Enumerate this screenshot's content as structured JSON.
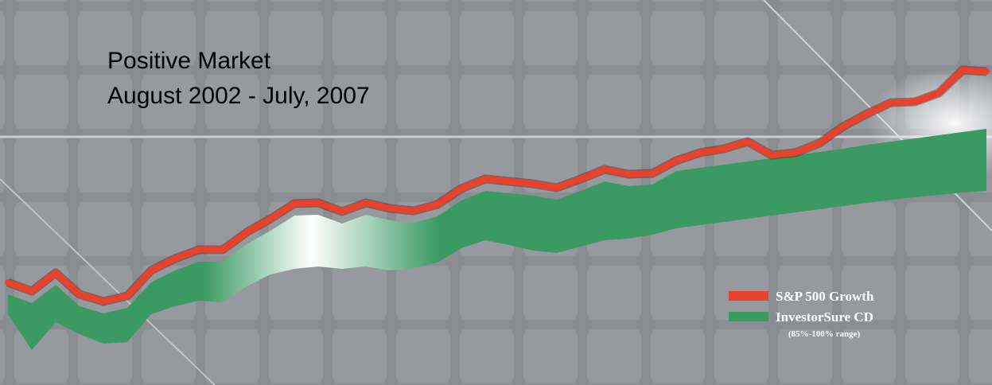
{
  "chart_data": {
    "type": "line",
    "title": "Positive Market",
    "subtitle": "August 2002 - July, 2007",
    "legend_note": "(85%-100% range)",
    "series": [
      {
        "name": "S&P 500 Growth",
        "color": "#e8412c",
        "values": [
          129,
          118,
          141,
          114,
          105,
          112,
          144,
          159,
          170,
          170,
          192,
          209,
          228,
          229,
          218,
          229,
          222,
          219,
          227,
          247,
          259,
          256,
          253,
          248,
          259,
          271,
          265,
          266,
          282,
          292,
          297,
          306,
          289,
          292,
          304,
          325,
          341,
          355,
          356,
          367,
          396,
          394
        ]
      },
      {
        "name": "InvestorSure CD",
        "color": "#3a9a62",
        "values": [
          114,
          103,
          126,
          99,
          90,
          97,
          129,
          144,
          155,
          155,
          177,
          194,
          213,
          214,
          203,
          214,
          207,
          204,
          212,
          232,
          244,
          241,
          238,
          233,
          244,
          256,
          250,
          252,
          269,
          273,
          277,
          281,
          285,
          289,
          293,
          297,
          302,
          306,
          310,
          314,
          318,
          322
        ],
        "low": [
          89,
          44,
          79,
          64,
          52,
          54,
          89,
          99,
          106,
          104,
          124,
          139,
          146,
          149,
          146,
          149,
          144,
          147,
          154,
          172,
          182,
          176,
          169,
          166,
          174,
          182,
          184,
          189,
          197,
          201,
          205,
          209,
          213,
          217,
          221,
          225,
          229,
          233,
          236,
          239,
          242,
          244
        ]
      }
    ]
  }
}
